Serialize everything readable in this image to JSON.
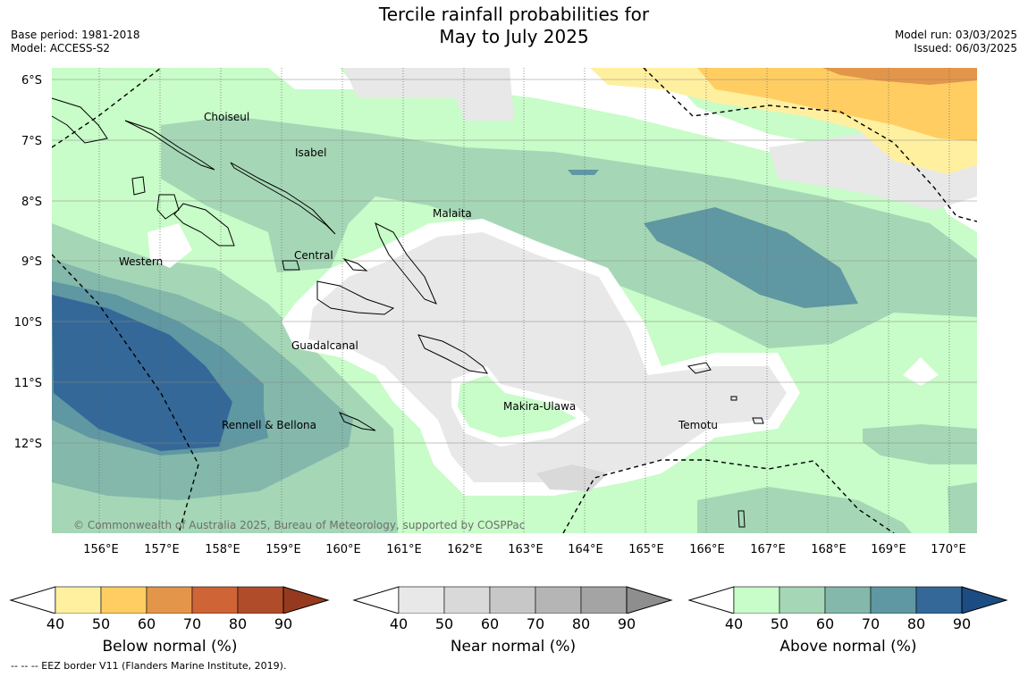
{
  "title_line1": "Tercile rainfall probabilities for",
  "title_line2": "May to July 2025",
  "base_period": "Base period: 1981-2018",
  "model": "Model: ACCESS-S2",
  "model_run": "Model run: 03/03/2025",
  "issued": "Issued: 06/03/2025",
  "copyright": "© Commonwealth of Australia 2025, Bureau of Meteorology, supported by COSPPac",
  "footnote": "--  --  -- EEZ border V11 (Flanders Marine Institute, 2019).",
  "latitude_labels": [
    "6°S",
    "7°S",
    "8°S",
    "9°S",
    "10°S",
    "11°S",
    "12°S"
  ],
  "longitude_labels": [
    "156°E",
    "157°E",
    "158°E",
    "159°E",
    "160°E",
    "161°E",
    "162°E",
    "163°E",
    "164°E",
    "165°E",
    "166°E",
    "167°E",
    "168°E",
    "169°E",
    "170°E"
  ],
  "regions": [
    "Choiseul",
    "Isabel",
    "Malaita",
    "Western",
    "Central",
    "Guadalcanal",
    "Makira-Ulawa",
    "Rennell & Bellona",
    "Temotu"
  ],
  "colorbars": [
    {
      "title": "Below normal (%)",
      "ticks": [
        "40",
        "50",
        "60",
        "70",
        "80",
        "90"
      ],
      "colors": [
        "#fff0a0",
        "#ffcd62",
        "#e3964a",
        "#cf6436",
        "#b04c2a",
        "#963a1f"
      ]
    },
    {
      "title": "Near normal (%)",
      "ticks": [
        "40",
        "50",
        "60",
        "70",
        "80",
        "90"
      ],
      "colors": [
        "#e8e8e8",
        "#d9d9d9",
        "#c7c7c7",
        "#b5b5b5",
        "#a4a4a4",
        "#8e8e8e"
      ]
    },
    {
      "title": "Above normal (%)",
      "ticks": [
        "40",
        "50",
        "60",
        "70",
        "80",
        "90"
      ],
      "colors": [
        "#c8fcc8",
        "#a5d7b6",
        "#83b8ab",
        "#5f97a2",
        "#346898",
        "#1c4d82"
      ]
    }
  ]
}
